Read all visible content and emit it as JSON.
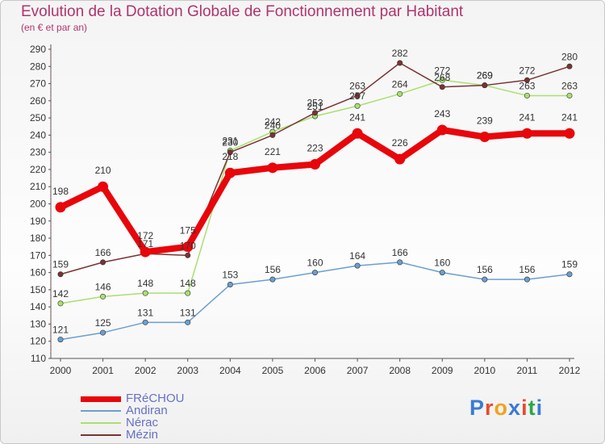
{
  "header": {
    "title": "Evolution de la Dotation Globale de Fonctionnement par Habitant",
    "subtitle": "(en € et par an)"
  },
  "logo": {
    "text": "Proxiti",
    "colors": [
      "#3a7bd5",
      "#e84b2c",
      "#f3a21b",
      "#3a7bd5",
      "#e84b2c",
      "#2aa84a",
      "#3a7bd5"
    ]
  },
  "chart_data": {
    "type": "line",
    "title": "Evolution de la Dotation Globale de Fonctionnement par Habitant",
    "subtitle": "(en € et par an)",
    "x": [
      "2000",
      "2001",
      "2002",
      "2003",
      "2004",
      "2005",
      "2006",
      "2007",
      "2008",
      "2009",
      "2010",
      "2011",
      "2012"
    ],
    "ylim": [
      110,
      290
    ],
    "ytick_step": 10,
    "grid": false,
    "legend_position": "bottom-left",
    "series": [
      {
        "name": "FRéCHOU",
        "color": "#e8060b",
        "values": [
          198,
          210,
          172,
          175,
          218,
          221,
          223,
          241,
          226,
          243,
          239,
          241,
          241
        ]
      },
      {
        "name": "Andiran",
        "color": "#6b9fd0",
        "values": [
          121,
          125,
          131,
          131,
          153,
          156,
          160,
          164,
          166,
          160,
          156,
          156,
          159
        ]
      },
      {
        "name": "Nérac",
        "color": "#a8e070",
        "values": [
          142,
          146,
          148,
          148,
          231,
          242,
          251,
          257,
          264,
          272,
          269,
          263,
          263
        ]
      },
      {
        "name": "Mézin",
        "color": "#7a3232",
        "values": [
          159,
          166,
          171,
          170,
          230,
          240,
          253,
          263,
          282,
          268,
          269,
          272,
          280
        ]
      }
    ]
  }
}
